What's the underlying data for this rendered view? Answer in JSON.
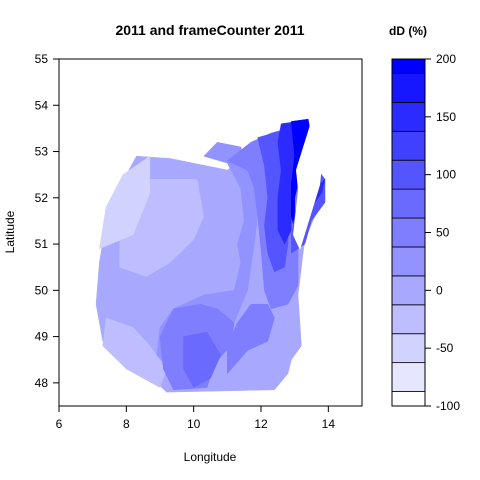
{
  "chart_data": {
    "type": "heatmap",
    "title": "2011 and frameCounter 2011",
    "xlabel": "Longitude",
    "ylabel": "Latitude",
    "xlim": [
      6,
      15
    ],
    "ylim": [
      47.5,
      55
    ],
    "x_ticks": [
      "6",
      "8",
      "10",
      "12",
      "14"
    ],
    "y_ticks": [
      "48",
      "49",
      "50",
      "51",
      "52",
      "53",
      "54",
      "55"
    ],
    "legend": {
      "title": "dD (%)",
      "placement": "right",
      "range": [
        -100,
        200
      ],
      "ticks": [
        "200",
        "150",
        "100",
        "50",
        "0",
        "-50",
        "-100"
      ],
      "levels": [
        {
          "from": -100,
          "to": -87.5,
          "color": "#ffffff"
        },
        {
          "from": -87.5,
          "to": -62.5,
          "color": "#e6e6ff"
        },
        {
          "from": -62.5,
          "to": -37.5,
          "color": "#d2d2ff"
        },
        {
          "from": -37.5,
          "to": -12.5,
          "color": "#bdbdff"
        },
        {
          "from": -12.5,
          "to": 12.5,
          "color": "#a8a8ff"
        },
        {
          "from": 12.5,
          "to": 37.5,
          "color": "#9393ff"
        },
        {
          "from": 37.5,
          "to": 62.5,
          "color": "#7e7eff"
        },
        {
          "from": 62.5,
          "to": 87.5,
          "color": "#6a6aff"
        },
        {
          "from": 87.5,
          "to": 112.5,
          "color": "#5555ff"
        },
        {
          "from": 112.5,
          "to": 137.5,
          "color": "#4040ff"
        },
        {
          "from": 137.5,
          "to": 162.5,
          "color": "#2b2bff"
        },
        {
          "from": 162.5,
          "to": 187.5,
          "color": "#1616ff"
        },
        {
          "from": 187.5,
          "to": 200,
          "color": "#0000ff"
        }
      ]
    },
    "regions": [
      {
        "level": -12.5,
        "points": [
          [
            8.3,
            52.9
          ],
          [
            9.3,
            52.85
          ],
          [
            11,
            52.6
          ],
          [
            12.4,
            53.3
          ],
          [
            12.7,
            53.5
          ],
          [
            13.1,
            53.5
          ],
          [
            13.5,
            52.9
          ],
          [
            13.6,
            52.4
          ],
          [
            13.6,
            51.6
          ],
          [
            13.3,
            51.1
          ],
          [
            13.1,
            49.9
          ],
          [
            13.2,
            48.8
          ],
          [
            12.9,
            48.5
          ],
          [
            12.8,
            48.2
          ],
          [
            12.4,
            47.85
          ],
          [
            9.2,
            47.8
          ],
          [
            8.3,
            48.4
          ],
          [
            7.3,
            48.9
          ],
          [
            7.1,
            49.7
          ],
          [
            7.2,
            50.6
          ],
          [
            7.4,
            51.5
          ],
          [
            7.7,
            52.1
          ]
        ]
      },
      {
        "level": -37.5,
        "points": [
          [
            7.8,
            51.5
          ],
          [
            8.7,
            52.4
          ],
          [
            10.1,
            52.4
          ],
          [
            10.3,
            51.6
          ],
          [
            10.0,
            51.1
          ],
          [
            9.3,
            50.6
          ],
          [
            8.6,
            50.3
          ],
          [
            7.8,
            50.5
          ]
        ]
      },
      {
        "level": -62.5,
        "points": [
          [
            7.2,
            50.9
          ],
          [
            8.2,
            51.2
          ],
          [
            8.7,
            52.1
          ],
          [
            8.7,
            52.9
          ],
          [
            7.9,
            52.5
          ],
          [
            7.4,
            51.8
          ]
        ]
      },
      {
        "level": -37.5,
        "points": [
          [
            7.4,
            49.4
          ],
          [
            8.2,
            49.2
          ],
          [
            8.7,
            48.8
          ],
          [
            9.2,
            48.3
          ],
          [
            9.0,
            47.9
          ],
          [
            8.0,
            48.3
          ],
          [
            7.3,
            48.8
          ]
        ]
      },
      {
        "level": 12.5,
        "points": [
          [
            10.3,
            52.9
          ],
          [
            11.0,
            52.75
          ],
          [
            11.4,
            52.2
          ],
          [
            11.5,
            51.5
          ],
          [
            11.3,
            51.0
          ],
          [
            11.4,
            50.6
          ],
          [
            11.2,
            50.0
          ],
          [
            10.3,
            49.9
          ],
          [
            9.4,
            49.6
          ],
          [
            9.0,
            49.2
          ],
          [
            8.9,
            48.6
          ],
          [
            9.3,
            48.3
          ],
          [
            9.9,
            48.5
          ],
          [
            10.5,
            48.7
          ],
          [
            11.1,
            48.8
          ],
          [
            11.2,
            49.3
          ],
          [
            11.6,
            50.0
          ],
          [
            11.8,
            51.0
          ],
          [
            11.9,
            51.6
          ],
          [
            11.8,
            52.3
          ],
          [
            11.4,
            53.1
          ],
          [
            10.7,
            53.2
          ]
        ]
      },
      {
        "level": 37.5,
        "points": [
          [
            9.4,
            49.6
          ],
          [
            10.2,
            49.7
          ],
          [
            10.7,
            49.6
          ],
          [
            11.2,
            49.3
          ],
          [
            11.1,
            48.8
          ],
          [
            10.6,
            48.4
          ],
          [
            10.4,
            47.9
          ],
          [
            9.4,
            47.85
          ],
          [
            9.1,
            48.3
          ],
          [
            9.0,
            49.0
          ]
        ]
      },
      {
        "level": 62.5,
        "points": [
          [
            9.7,
            49.0
          ],
          [
            10.4,
            49.1
          ],
          [
            10.8,
            48.6
          ],
          [
            10.5,
            48.1
          ],
          [
            10.0,
            47.9
          ],
          [
            9.7,
            48.3
          ]
        ]
      },
      {
        "level": 37.5,
        "points": [
          [
            11.0,
            52.8
          ],
          [
            11.7,
            53.2
          ],
          [
            12.3,
            53.4
          ],
          [
            12.8,
            53.5
          ],
          [
            13.0,
            53.4
          ],
          [
            13.3,
            52.6
          ],
          [
            13.5,
            52.2
          ],
          [
            13.4,
            51.5
          ],
          [
            13.1,
            51.0
          ],
          [
            13.1,
            50.1
          ],
          [
            12.8,
            49.7
          ],
          [
            12.3,
            49.6
          ],
          [
            12.1,
            50.0
          ],
          [
            12.0,
            50.9
          ],
          [
            11.9,
            51.6
          ],
          [
            11.8,
            52.2
          ],
          [
            11.6,
            52.6
          ]
        ]
      },
      {
        "level": 87.5,
        "points": [
          [
            11.9,
            53.3
          ],
          [
            12.6,
            53.45
          ],
          [
            12.9,
            53.3
          ],
          [
            13.0,
            52.7
          ],
          [
            12.9,
            52.2
          ],
          [
            12.8,
            51.7
          ],
          [
            12.8,
            51.0
          ],
          [
            12.7,
            50.5
          ],
          [
            12.4,
            50.4
          ],
          [
            12.2,
            50.8
          ],
          [
            12.1,
            51.4
          ],
          [
            12.2,
            52.0
          ],
          [
            12.1,
            52.7
          ]
        ]
      },
      {
        "level": 137.5,
        "points": [
          [
            12.6,
            53.6
          ],
          [
            13.1,
            53.65
          ],
          [
            13.0,
            53.0
          ],
          [
            13.0,
            52.4
          ],
          [
            12.9,
            51.9
          ],
          [
            12.9,
            51.3
          ],
          [
            12.7,
            51.0
          ],
          [
            12.5,
            51.3
          ],
          [
            12.5,
            52.0
          ],
          [
            12.6,
            52.6
          ],
          [
            12.5,
            53.2
          ]
        ]
      },
      {
        "level": 187.5,
        "points": [
          [
            12.9,
            53.65
          ],
          [
            13.4,
            53.7
          ],
          [
            13.5,
            53.3
          ],
          [
            13.2,
            52.6
          ],
          [
            13.0,
            52.0
          ],
          [
            13.0,
            51.3
          ],
          [
            12.9,
            51.6
          ],
          [
            12.9,
            52.3
          ],
          [
            13.0,
            52.9
          ]
        ]
      },
      {
        "level": 87.5,
        "points": [
          [
            12.9,
            50.8
          ],
          [
            13.3,
            51.0
          ],
          [
            13.5,
            51.5
          ],
          [
            13.9,
            51.9
          ],
          [
            13.9,
            52.4
          ],
          [
            13.7,
            52.6
          ],
          [
            13.3,
            52.1
          ],
          [
            13.0,
            51.6
          ],
          [
            12.9,
            51.2
          ]
        ]
      },
      {
        "level": 37.5,
        "points": [
          [
            11.0,
            48.2
          ],
          [
            11.6,
            48.7
          ],
          [
            12.2,
            48.9
          ],
          [
            12.4,
            49.4
          ],
          [
            12.2,
            49.7
          ],
          [
            11.7,
            49.7
          ],
          [
            11.3,
            49.3
          ],
          [
            11.0,
            48.8
          ]
        ]
      },
      {
        "level": 137.5,
        "points": [
          [
            13.0,
            51.4
          ],
          [
            13.4,
            51.7
          ],
          [
            13.8,
            52.1
          ],
          [
            13.9,
            52.4
          ],
          [
            13.6,
            52.2
          ],
          [
            13.2,
            51.9
          ],
          [
            13.0,
            51.7
          ]
        ]
      }
    ]
  }
}
